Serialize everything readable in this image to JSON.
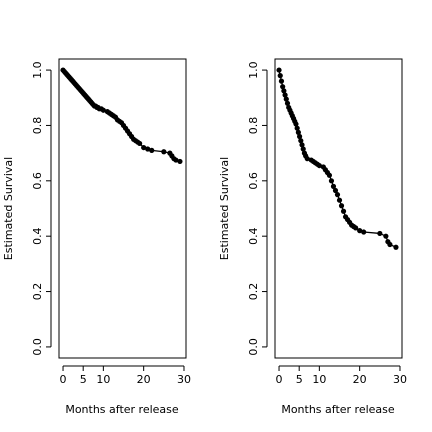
{
  "chart_data": [
    {
      "type": "line",
      "xlabel": "Months after release",
      "ylabel": "Estimated Survival",
      "xlim": [
        -1,
        30.5
      ],
      "ylim": [
        -0.04,
        1.04
      ],
      "xticks": [
        0,
        5,
        10,
        20,
        30
      ],
      "xtick_labels": [
        "0",
        "5",
        "10",
        "20",
        "30"
      ],
      "yticks": [
        0.0,
        0.2,
        0.4,
        0.6,
        0.8,
        1.0
      ],
      "ytick_labels": [
        "0.0",
        "0.2",
        "0.4",
        "0.6",
        "0.8",
        "1.0"
      ],
      "grid": false,
      "color": "#000000",
      "series": [
        {
          "x": [
            0,
            0.3,
            0.6,
            0.9,
            1.2,
            1.5,
            1.8,
            2.1,
            2.4,
            2.7,
            3.0,
            3.3,
            3.6,
            3.9,
            4.2,
            4.5,
            4.8,
            5.1,
            5.4,
            5.7,
            6.0,
            6.3,
            6.6,
            6.9,
            7.2,
            7.5,
            7.8,
            8.1,
            8.4,
            8.7,
            9.0,
            9.5,
            10.0,
            11.0,
            11.5,
            12.0,
            12.5,
            13.0,
            13.5,
            14.0,
            14.5,
            15.0,
            15.5,
            16.0,
            16.5,
            17.0,
            17.5,
            18.0,
            18.5,
            19.0,
            20.0,
            21.0,
            22.0,
            25.0,
            26.5,
            27.0,
            27.5,
            28.0,
            29.0
          ],
          "y": [
            1.0,
            0.995,
            0.99,
            0.985,
            0.98,
            0.975,
            0.97,
            0.965,
            0.96,
            0.955,
            0.95,
            0.945,
            0.94,
            0.935,
            0.93,
            0.925,
            0.92,
            0.915,
            0.91,
            0.905,
            0.9,
            0.895,
            0.89,
            0.885,
            0.88,
            0.875,
            0.87,
            0.87,
            0.865,
            0.865,
            0.86,
            0.86,
            0.855,
            0.85,
            0.845,
            0.84,
            0.835,
            0.83,
            0.82,
            0.815,
            0.81,
            0.8,
            0.79,
            0.78,
            0.77,
            0.76,
            0.75,
            0.745,
            0.74,
            0.735,
            0.72,
            0.715,
            0.71,
            0.705,
            0.7,
            0.69,
            0.68,
            0.675,
            0.67
          ]
        }
      ]
    },
    {
      "type": "line",
      "xlabel": "Months after release",
      "ylabel": "Estimated Survival",
      "xlim": [
        -1,
        30.5
      ],
      "ylim": [
        -0.04,
        1.04
      ],
      "xticks": [
        0,
        5,
        10,
        20,
        30
      ],
      "xtick_labels": [
        "0",
        "5",
        "10",
        "20",
        "30"
      ],
      "yticks": [
        0.0,
        0.2,
        0.4,
        0.6,
        0.8,
        1.0
      ],
      "ytick_labels": [
        "0.0",
        "0.2",
        "0.4",
        "0.6",
        "0.8",
        "1.0"
      ],
      "grid": false,
      "color": "#000000",
      "series": [
        {
          "x": [
            0,
            0.3,
            0.6,
            0.9,
            1.2,
            1.5,
            1.8,
            2.1,
            2.4,
            2.7,
            3.0,
            3.3,
            3.6,
            3.9,
            4.2,
            4.5,
            4.8,
            5.1,
            5.4,
            5.7,
            6.0,
            6.3,
            6.6,
            7.0,
            8.0,
            8.5,
            9.0,
            9.5,
            10.0,
            11.0,
            11.5,
            12.0,
            12.5,
            13.0,
            13.5,
            14.0,
            14.5,
            15.0,
            15.5,
            16.0,
            16.5,
            17.0,
            17.5,
            18.0,
            18.5,
            19.0,
            20.0,
            21.0,
            25.0,
            26.5,
            27.0,
            27.5,
            29.0
          ],
          "y": [
            1.0,
            0.98,
            0.96,
            0.94,
            0.925,
            0.91,
            0.895,
            0.88,
            0.865,
            0.855,
            0.845,
            0.835,
            0.825,
            0.815,
            0.805,
            0.79,
            0.775,
            0.76,
            0.745,
            0.73,
            0.715,
            0.7,
            0.69,
            0.68,
            0.675,
            0.67,
            0.665,
            0.66,
            0.655,
            0.65,
            0.64,
            0.63,
            0.62,
            0.6,
            0.58,
            0.565,
            0.55,
            0.53,
            0.51,
            0.49,
            0.47,
            0.46,
            0.45,
            0.44,
            0.435,
            0.43,
            0.42,
            0.415,
            0.41,
            0.4,
            0.38,
            0.37,
            0.36
          ]
        }
      ]
    }
  ]
}
